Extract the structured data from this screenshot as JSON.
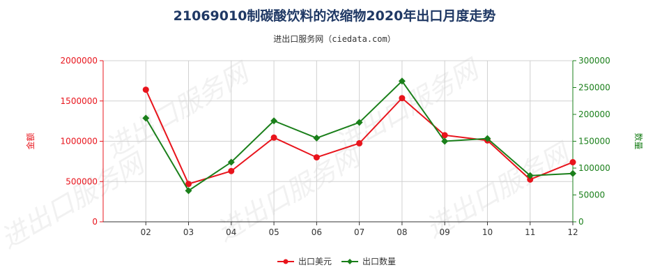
{
  "chart_data": {
    "type": "line",
    "title": "21069010制碳酸饮料的浓缩物2020年出口月度走势",
    "subtitle": "进出口服务网（ciedata.com）",
    "watermark": "进出口服务网",
    "categories": [
      "02",
      "03",
      "04",
      "05",
      "06",
      "07",
      "08",
      "09",
      "10",
      "11",
      "12"
    ],
    "y_left": {
      "label": "金额",
      "ylim": [
        0,
        2000000
      ],
      "ticks": [
        "0",
        "500000",
        "1000000",
        "1500000",
        "2000000"
      ],
      "color": "#e8141c"
    },
    "y_right": {
      "label": "数量",
      "ylim": [
        0,
        300000
      ],
      "ticks": [
        "0",
        "50000",
        "100000",
        "150000",
        "200000",
        "250000",
        "300000"
      ],
      "color": "#1a7f1a"
    },
    "series": [
      {
        "name": "出口美元",
        "axis": "left",
        "color": "#e8141c",
        "marker": "circle",
        "values": [
          1640000,
          470000,
          630000,
          1045000,
          800000,
          975000,
          1535000,
          1075000,
          1010000,
          525000,
          740000
        ]
      },
      {
        "name": "出口数量",
        "axis": "right",
        "color": "#1a7f1a",
        "marker": "diamond",
        "values": [
          193000,
          58000,
          111000,
          188000,
          156000,
          185000,
          262000,
          150000,
          155000,
          86000,
          90000
        ]
      }
    ],
    "grid": true,
    "legend_position": "bottom-center"
  }
}
